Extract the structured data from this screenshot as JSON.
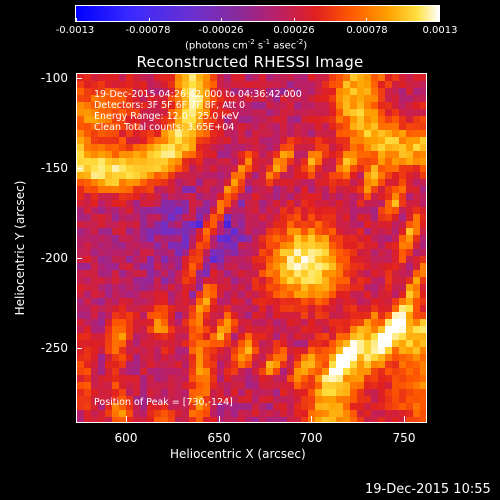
{
  "colorbar": {
    "ticks": [
      "-0.0013",
      "-0.00078",
      "-0.00026",
      "0.00026",
      "0.00078",
      "0.0013"
    ],
    "units_prefix": "(photons cm",
    "units_exp1": "-2",
    "units_mid": " s",
    "units_exp2": "-1",
    "units_mid2": " asec",
    "units_exp3": "-2",
    "units_suffix": ")"
  },
  "title": "Reconstructed RHESSI Image",
  "annotations": {
    "time_range": "19-Dec-2015 04:26:42.000 to 04:36:42.000",
    "detectors": "Detectors: 3F 5F 6F 7F 8F, Att 0",
    "energy": "Energy Range: 12.0 - 25.0 keV",
    "clean": "Clean    Total counts: 3.65E+04",
    "peak": "Position of Peak = [730,-124]"
  },
  "axes": {
    "xlabel": "Heliocentric X (arcsec)",
    "ylabel": "Heliocentric Y (arcsec)",
    "xticks": [
      "600",
      "650",
      "700",
      "750"
    ],
    "yticks": [
      "-100",
      "-150",
      "-200",
      "-250"
    ]
  },
  "footer_timestamp": "19-Dec-2015 10:55",
  "chart_data": {
    "type": "heatmap",
    "title": "Reconstructed RHESSI Image",
    "xlabel": "Heliocentric X (arcsec)",
    "ylabel": "Heliocentric Y (arcsec)",
    "xlim": [
      570,
      762
    ],
    "ylim": [
      -290,
      -97
    ],
    "value_range": [
      -0.0013,
      0.0013
    ],
    "colorscale": [
      "#0000ff",
      "#6a30d0",
      "#b8206a",
      "#e02020",
      "#ff5a00",
      "#ffa000",
      "#ffe040",
      "#ffffff"
    ],
    "peak_position": [
      730,
      -124
    ]
  }
}
